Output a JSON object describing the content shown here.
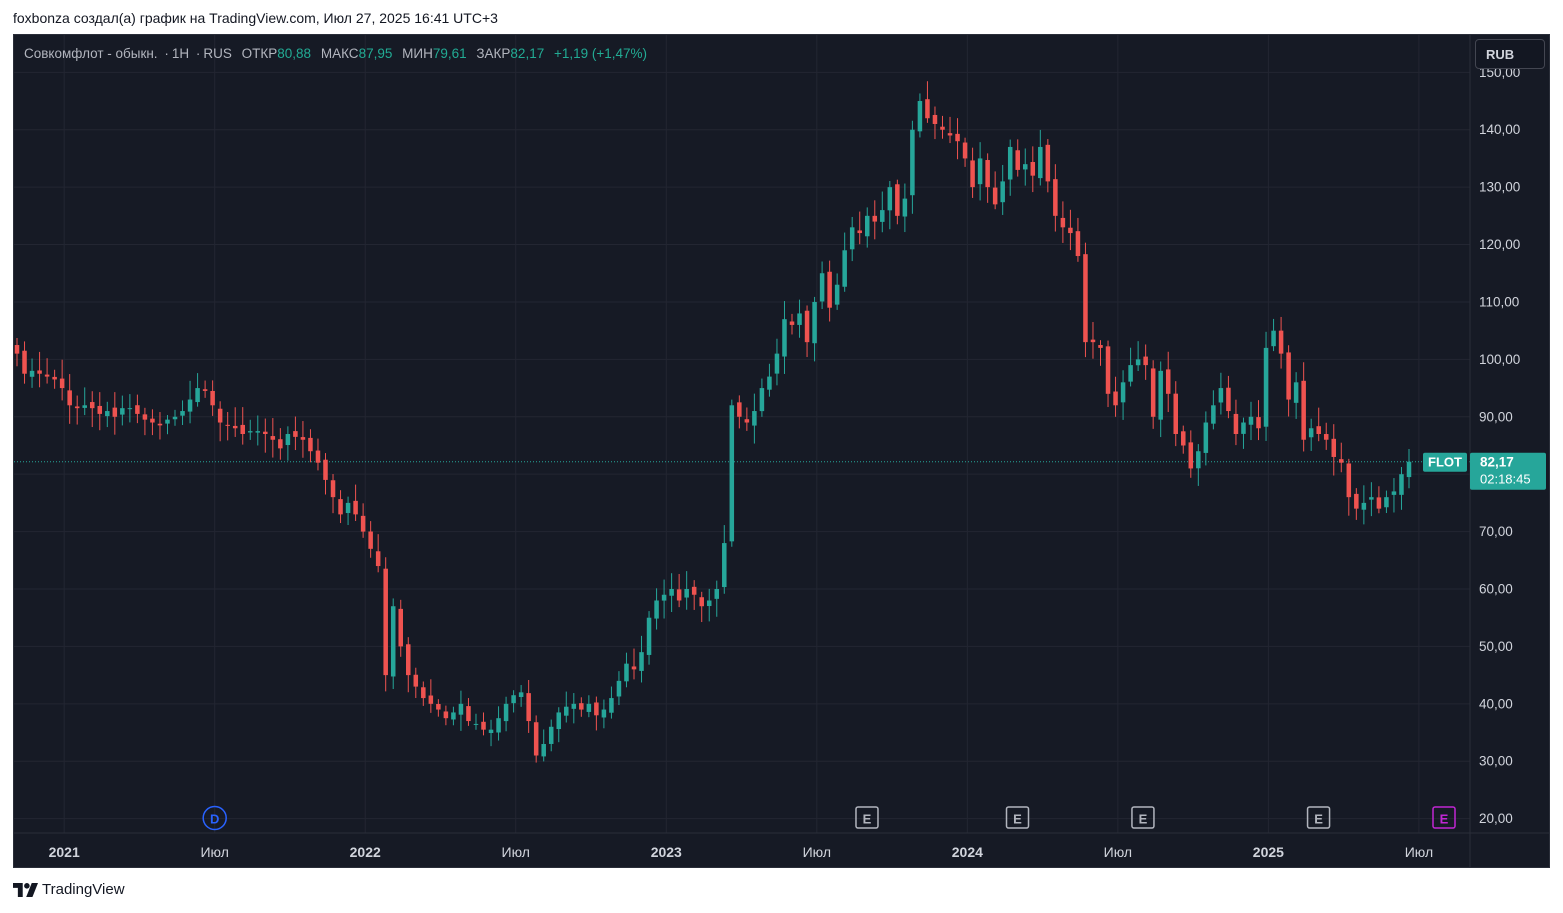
{
  "caption": "foxbonza создал(а) график на TradingView.com, Июл 27, 2025 16:41 UTC+3",
  "legend": {
    "symbol": "Совкомфлот - обыкн.",
    "interval": "1H",
    "exchange": "RUS",
    "open_label": "ОТКР",
    "open": "80,88",
    "high_label": "МАКС",
    "high": "87,95",
    "low_label": "МИН",
    "low": "79,61",
    "close_label": "ЗАКР",
    "close": "82,17",
    "change": "+1,19 (+1,47%)"
  },
  "currency": "RUB",
  "price_tag": {
    "ticker": "FLOT",
    "price": "82,17",
    "countdown": "02:18:45"
  },
  "markers": [
    {
      "label": "D",
      "x": "2021-07",
      "color": "#2962ff"
    },
    {
      "label": "E",
      "x": "2023-09",
      "color": "#b2b5be"
    },
    {
      "label": "E",
      "x": "2024-03",
      "color": "#b2b5be"
    },
    {
      "label": "E",
      "x": "2024-08",
      "color": "#b2b5be"
    },
    {
      "label": "E",
      "x": "2025-03",
      "color": "#b2b5be"
    },
    {
      "label": "E",
      "x": "2025-08",
      "color": "#c026d3"
    }
  ],
  "logo_text": "TradingView",
  "colors": {
    "background": "#161a25",
    "grid": "#232632",
    "up": "#26a69a",
    "down": "#ef5350",
    "axis_text": "#d1d4dc"
  },
  "chart_data": {
    "type": "candlestick",
    "y_ticks": [
      "150,00",
      "140,00",
      "130,00",
      "120,00",
      "110,00",
      "100,00",
      "90,00",
      "80,00",
      "70,00",
      "60,00",
      "50,00",
      "40,00",
      "30,00",
      "20,00"
    ],
    "y_range": [
      17.5,
      156.5
    ],
    "x_ticks": [
      {
        "label": "2021",
        "bold": true,
        "date": "2021-01"
      },
      {
        "label": "Июл",
        "bold": false,
        "date": "2021-07"
      },
      {
        "label": "2022",
        "bold": true,
        "date": "2022-01"
      },
      {
        "label": "Июл",
        "bold": false,
        "date": "2022-07"
      },
      {
        "label": "2023",
        "bold": true,
        "date": "2023-01"
      },
      {
        "label": "Июл",
        "bold": false,
        "date": "2023-07"
      },
      {
        "label": "2024",
        "bold": true,
        "date": "2024-01"
      },
      {
        "label": "Июл",
        "bold": false,
        "date": "2024-07"
      },
      {
        "label": "2025",
        "bold": true,
        "date": "2025-01"
      },
      {
        "label": "Июл",
        "bold": false,
        "date": "2025-07"
      }
    ],
    "last_price": 82.17,
    "closes": [
      101,
      97.5,
      98,
      97.5,
      97,
      96.5,
      95,
      92,
      91.5,
      92,
      91.5,
      90.5,
      91,
      90,
      91.5,
      91.5,
      90.5,
      89.5,
      89,
      88.5,
      89.5,
      90,
      91,
      93,
      95,
      94.5,
      92,
      89,
      88.5,
      88,
      87,
      87.5,
      87.5,
      87,
      86,
      84.5,
      87,
      86.5,
      86,
      84,
      82,
      79,
      76,
      73,
      75,
      73,
      70,
      67,
      64,
      45,
      57,
      50,
      45,
      43,
      41,
      40,
      39,
      37.5,
      38.5,
      40,
      37,
      36.5,
      35.5,
      35.5,
      37.5,
      40,
      41.5,
      42,
      37,
      31,
      33,
      36,
      38.5,
      39.5,
      40,
      39,
      40,
      38,
      39,
      41,
      44,
      47,
      46,
      49,
      55,
      58,
      59,
      60,
      58,
      60,
      59,
      57,
      58,
      60,
      68,
      92,
      90,
      89,
      91,
      95,
      97,
      101,
      107,
      106,
      108,
      103,
      110,
      115,
      109,
      113,
      119,
      123,
      122,
      125,
      124,
      126,
      130,
      125,
      128,
      140,
      145,
      142,
      141,
      140,
      139,
      138,
      135,
      130,
      135,
      130,
      127,
      131,
      137,
      133,
      134,
      132,
      137,
      131,
      125,
      123,
      122,
      118,
      103,
      103,
      102,
      94,
      92,
      96,
      99,
      100,
      99,
      90,
      98,
      94,
      87,
      85,
      81,
      84,
      89,
      92,
      95,
      91,
      87,
      89,
      90,
      88,
      102,
      105,
      101,
      93,
      96,
      86,
      88,
      87,
      86,
      83,
      82,
      76,
      74,
      75,
      76,
      74,
      76,
      77,
      80,
      82.17
    ]
  }
}
